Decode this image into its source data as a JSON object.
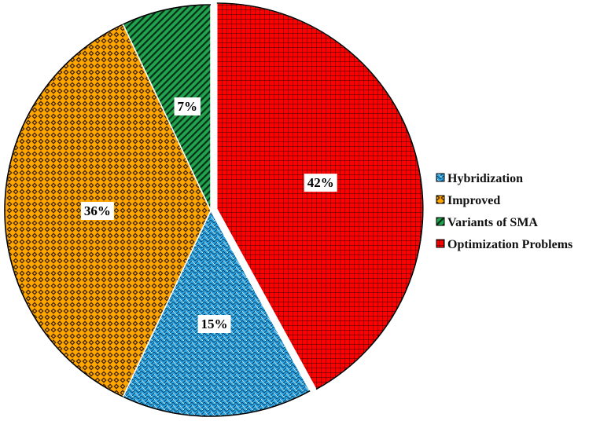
{
  "chart_data": {
    "type": "pie",
    "series": [
      {
        "name": "Optimization Problems",
        "value": 42,
        "label": "42%",
        "color": "#ff0000",
        "pattern": "grid"
      },
      {
        "name": "Hybridization",
        "value": 15,
        "label": "15%",
        "color": "#1ea0e0",
        "pattern": "weave"
      },
      {
        "name": "Improved",
        "value": 36,
        "label": "36%",
        "color": "#ff9900",
        "pattern": "diamond"
      },
      {
        "name": "Variants of SMA",
        "value": 7,
        "label": "7%",
        "color": "#1f9b4a",
        "pattern": "diagonal"
      }
    ],
    "legend_order": [
      "Hybridization",
      "Improved",
      "Variants of SMA",
      "Optimization Problems"
    ],
    "legend_position": "right",
    "exploded_slice": "Optimization Problems"
  }
}
